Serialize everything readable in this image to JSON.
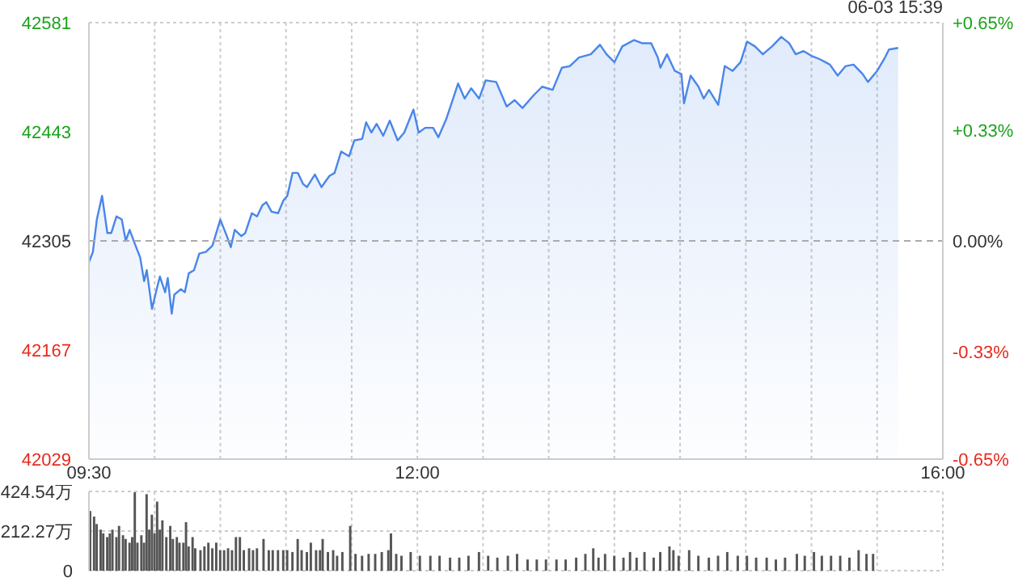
{
  "chart_data": [
    {
      "type": "area",
      "annotations": [
        "06-03 15:39"
      ],
      "x": [
        9.5,
        9.53,
        9.56,
        9.6,
        9.64,
        9.67,
        9.71,
        9.75,
        9.78,
        9.81,
        9.85,
        9.89,
        9.92,
        9.94,
        9.98,
        10.01,
        10.04,
        10.08,
        10.1,
        10.13,
        10.15,
        10.2,
        10.23,
        10.26,
        10.3,
        10.34,
        10.39,
        10.44,
        10.5,
        10.55,
        10.58,
        10.61,
        10.66,
        10.69,
        10.74,
        10.78,
        10.82,
        10.85,
        10.89,
        10.94,
        10.98,
        11.01,
        11.05,
        11.09,
        11.13,
        11.16,
        11.22,
        11.27,
        11.33,
        11.37,
        11.42,
        11.48,
        11.52,
        11.58,
        11.61,
        11.65,
        11.69,
        11.74,
        11.79,
        11.85,
        11.9,
        11.97,
        12.01,
        12.06,
        12.12,
        12.16,
        12.22,
        12.26,
        12.31,
        12.36,
        12.41,
        12.47,
        12.52,
        12.6,
        12.68,
        12.74,
        12.8,
        12.89,
        12.95,
        13.03,
        13.1,
        13.16,
        13.23,
        13.32,
        13.39,
        13.44,
        13.5,
        13.56,
        13.65,
        13.71,
        13.78,
        13.83,
        13.85,
        13.9,
        13.96,
        14.01,
        14.03,
        14.08,
        14.14,
        14.18,
        14.22,
        14.29,
        14.34,
        14.4,
        14.46,
        14.51,
        14.57,
        14.63,
        14.7,
        14.77,
        14.83,
        14.88,
        14.94,
        15.0,
        15.06,
        15.14,
        15.2,
        15.26,
        15.32,
        15.39,
        15.43,
        15.5,
        15.56,
        15.59,
        15.66
      ],
      "series": [
        {
          "color": "#4a86e8",
          "values": [
            42278,
            42291,
            42332,
            42362,
            42315,
            42315,
            42336,
            42332,
            42305,
            42319,
            42301,
            42284,
            42254,
            42268,
            42219,
            42240,
            42260,
            42240,
            42258,
            42213,
            42237,
            42244,
            42240,
            42264,
            42268,
            42289,
            42291,
            42299,
            42332,
            42311,
            42297,
            42319,
            42311,
            42315,
            42340,
            42336,
            42350,
            42354,
            42342,
            42340,
            42356,
            42362,
            42391,
            42391,
            42377,
            42373,
            42389,
            42373,
            42387,
            42391,
            42418,
            42412,
            42432,
            42434,
            42455,
            42442,
            42453,
            42438,
            42457,
            42432,
            42442,
            42471,
            42442,
            42448,
            42448,
            42436,
            42459,
            42479,
            42504,
            42485,
            42498,
            42485,
            42508,
            42506,
            42475,
            42483,
            42473,
            42490,
            42500,
            42496,
            42524,
            42526,
            42537,
            42541,
            42553,
            42541,
            42531,
            42551,
            42559,
            42555,
            42555,
            42537,
            42524,
            42541,
            42520,
            42516,
            42479,
            42514,
            42500,
            42485,
            42496,
            42477,
            42526,
            42520,
            42531,
            42557,
            42551,
            42541,
            42551,
            42563,
            42555,
            42541,
            42545,
            42539,
            42535,
            42528,
            42514,
            42526,
            42528,
            42516,
            42506,
            42520,
            42537,
            42547,
            42549
          ]
        }
      ],
      "xlim": [
        9.5,
        16
      ],
      "xticks": [
        {
          "value": 9.5,
          "label": "09:30"
        },
        {
          "value": 10,
          "label": null
        },
        {
          "value": 10.5,
          "label": null
        },
        {
          "value": 11,
          "label": null
        },
        {
          "value": 11.5,
          "label": null
        },
        {
          "value": 12,
          "label": "12:00"
        },
        {
          "value": 12.5,
          "label": null
        },
        {
          "value": 13,
          "label": null
        },
        {
          "value": 13.5,
          "label": null
        },
        {
          "value": 14,
          "label": null
        },
        {
          "value": 14.5,
          "label": null
        },
        {
          "value": 15,
          "label": null
        },
        {
          "value": 15.5,
          "label": null
        },
        {
          "value": 16,
          "label": "16:00"
        }
      ],
      "ylim": [
        42029,
        42581
      ],
      "yticks": [
        42029,
        42167,
        42305,
        42443,
        42581
      ],
      "y2lim": [
        -0.65,
        0.65
      ],
      "y2ticks": [
        {
          "value": -0.65,
          "label": "-0.65%"
        },
        {
          "value": -0.33,
          "label": "-0.33%"
        },
        {
          "value": 0,
          "label": "0.00%"
        },
        {
          "value": 0.33,
          "label": "+0.33%"
        },
        {
          "value": 0.65,
          "label": "+0.65%"
        }
      ],
      "ref_lines": [
        {
          "axis": "y",
          "value": 42305,
          "line_style": "dashed",
          "color": "#aaaaaa"
        }
      ],
      "grid": true,
      "marker": "none",
      "line_style": "solid"
    },
    {
      "type": "bar",
      "x": [
        9.51,
        9.54,
        9.56,
        9.59,
        9.61,
        9.64,
        9.66,
        9.68,
        9.71,
        9.73,
        9.76,
        9.78,
        9.81,
        9.83,
        9.85,
        9.87,
        9.9,
        9.92,
        9.94,
        9.96,
        9.98,
        10.0,
        10.02,
        10.04,
        10.06,
        10.09,
        10.12,
        10.14,
        10.17,
        10.19,
        10.22,
        10.24,
        10.26,
        10.29,
        10.31,
        10.35,
        10.38,
        10.41,
        10.44,
        10.47,
        10.5,
        10.53,
        10.56,
        10.59,
        10.62,
        10.65,
        10.68,
        10.72,
        10.75,
        10.78,
        10.83,
        10.87,
        10.9,
        10.94,
        10.98,
        11.01,
        11.05,
        11.09,
        11.12,
        11.16,
        11.19,
        11.23,
        11.26,
        11.28,
        11.32,
        11.36,
        11.39,
        11.43,
        11.49,
        11.53,
        11.58,
        11.63,
        11.68,
        11.73,
        11.78,
        11.8,
        11.84,
        11.88,
        11.95,
        12.02,
        12.1,
        12.17,
        12.25,
        12.32,
        12.39,
        12.47,
        12.54,
        12.61,
        12.69,
        12.76,
        12.84,
        12.91,
        12.98,
        13.06,
        13.13,
        13.21,
        13.28,
        13.34,
        13.38,
        13.43,
        13.5,
        13.57,
        13.62,
        13.67,
        13.73,
        13.8,
        13.85,
        13.92,
        13.95,
        13.99,
        14.07,
        14.14,
        14.22,
        14.29,
        14.36,
        14.44,
        14.51,
        14.58,
        14.66,
        14.73,
        14.8,
        14.89,
        14.95,
        15.02,
        15.08,
        15.15,
        15.22,
        15.29,
        15.36,
        15.42,
        15.47
      ],
      "values": [
        320,
        290,
        250,
        220,
        200,
        180,
        200,
        220,
        180,
        240,
        190,
        170,
        150,
        180,
        420,
        150,
        190,
        150,
        410,
        220,
        300,
        200,
        370,
        220,
        270,
        180,
        240,
        170,
        180,
        150,
        150,
        260,
        130,
        180,
        120,
        110,
        130,
        150,
        120,
        150,
        110,
        110,
        120,
        110,
        180,
        180,
        110,
        120,
        110,
        120,
        170,
        110,
        110,
        110,
        110,
        110,
        100,
        170,
        110,
        100,
        150,
        110,
        110,
        170,
        100,
        110,
        80,
        100,
        240,
        90,
        80,
        90,
        90,
        100,
        110,
        200,
        90,
        80,
        100,
        80,
        80,
        80,
        70,
        70,
        80,
        100,
        80,
        70,
        80,
        90,
        60,
        60,
        60,
        60,
        60,
        70,
        90,
        120,
        70,
        90,
        80,
        70,
        100,
        70,
        100,
        70,
        100,
        130,
        110,
        80,
        110,
        80,
        70,
        80,
        100,
        80,
        80,
        70,
        70,
        60,
        70,
        90,
        80,
        100,
        80,
        80,
        80,
        70,
        110,
        90,
        90
      ],
      "color": "#555555",
      "xlim": [
        9.5,
        16
      ],
      "xticks": [
        {
          "value": 9.5,
          "label": null
        },
        {
          "value": 10,
          "label": null
        },
        {
          "value": 10.5,
          "label": null
        },
        {
          "value": 11,
          "label": null
        },
        {
          "value": 11.5,
          "label": null
        },
        {
          "value": 12,
          "label": null
        },
        {
          "value": 12.5,
          "label": null
        },
        {
          "value": 13,
          "label": null
        },
        {
          "value": 13.5,
          "label": null
        },
        {
          "value": 14,
          "label": null
        },
        {
          "value": 14.5,
          "label": null
        },
        {
          "value": 15,
          "label": null
        },
        {
          "value": 15.5,
          "label": null
        },
        {
          "value": 16,
          "label": null
        }
      ],
      "ylim": [
        0,
        424.54
      ],
      "yticks": [
        0,
        {
          "value": 212.27,
          "label": "212.27万"
        },
        {
          "value": 424.54,
          "label": "424.54万"
        }
      ],
      "grid": true,
      "tick_labels": "y"
    }
  ]
}
